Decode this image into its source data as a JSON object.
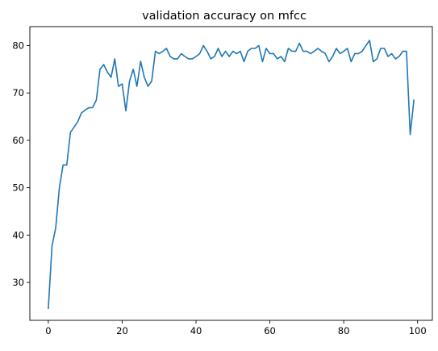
{
  "chart_data": {
    "type": "line",
    "title": "validation accuracy on mfcc",
    "xlabel": "",
    "ylabel": "",
    "xlim": [
      -5,
      104
    ],
    "ylim": [
      22,
      84
    ],
    "x_ticks": [
      0,
      20,
      40,
      60,
      80,
      100
    ],
    "y_ticks": [
      30,
      40,
      50,
      60,
      70,
      80
    ],
    "grid": false,
    "series": [
      {
        "color": "#1f77b4",
        "x": [
          0,
          1,
          2,
          3,
          4,
          5,
          6,
          7,
          8,
          9,
          10,
          11,
          12,
          13,
          14,
          15,
          16,
          17,
          18,
          19,
          20,
          21,
          22,
          23,
          24,
          25,
          26,
          27,
          28,
          29,
          30,
          31,
          32,
          33,
          34,
          35,
          36,
          37,
          38,
          39,
          40,
          41,
          42,
          43,
          44,
          45,
          46,
          47,
          48,
          49,
          50,
          51,
          52,
          53,
          54,
          55,
          56,
          57,
          58,
          59,
          60,
          61,
          62,
          63,
          64,
          65,
          66,
          67,
          68,
          69,
          70,
          71,
          72,
          73,
          74,
          75,
          76,
          77,
          78,
          79,
          80,
          81,
          82,
          83,
          84,
          85,
          86,
          87,
          88,
          89,
          90,
          91,
          92,
          93,
          94,
          95,
          96,
          97,
          98,
          99
        ],
        "values": [
          24.5,
          37.7,
          41.5,
          50.0,
          54.8,
          54.8,
          61.7,
          62.8,
          64.0,
          65.8,
          66.4,
          66.9,
          66.9,
          68.5,
          75.0,
          76.0,
          74.4,
          73.3,
          77.2,
          71.4,
          71.9,
          66.2,
          72.5,
          75.0,
          71.4,
          76.7,
          73.3,
          71.4,
          72.5,
          78.8,
          78.3,
          78.8,
          79.4,
          77.7,
          77.2,
          77.2,
          78.3,
          77.7,
          77.2,
          77.2,
          77.7,
          78.3,
          80.0,
          78.8,
          77.2,
          77.7,
          79.4,
          77.7,
          78.8,
          77.7,
          78.8,
          78.3,
          78.8,
          76.6,
          78.8,
          79.4,
          79.4,
          80.0,
          76.6,
          79.4,
          78.3,
          78.3,
          77.2,
          77.7,
          76.6,
          79.4,
          78.8,
          78.8,
          80.5,
          78.8,
          78.8,
          78.3,
          78.8,
          79.4,
          78.8,
          78.3,
          76.6,
          77.7,
          79.4,
          78.3,
          78.8,
          79.4,
          76.6,
          78.3,
          78.3,
          78.8,
          80.0,
          81.1,
          76.6,
          77.2,
          79.4,
          79.4,
          77.7,
          78.3,
          77.2,
          77.7,
          78.8,
          78.8,
          61.2,
          68.5
        ]
      }
    ]
  }
}
